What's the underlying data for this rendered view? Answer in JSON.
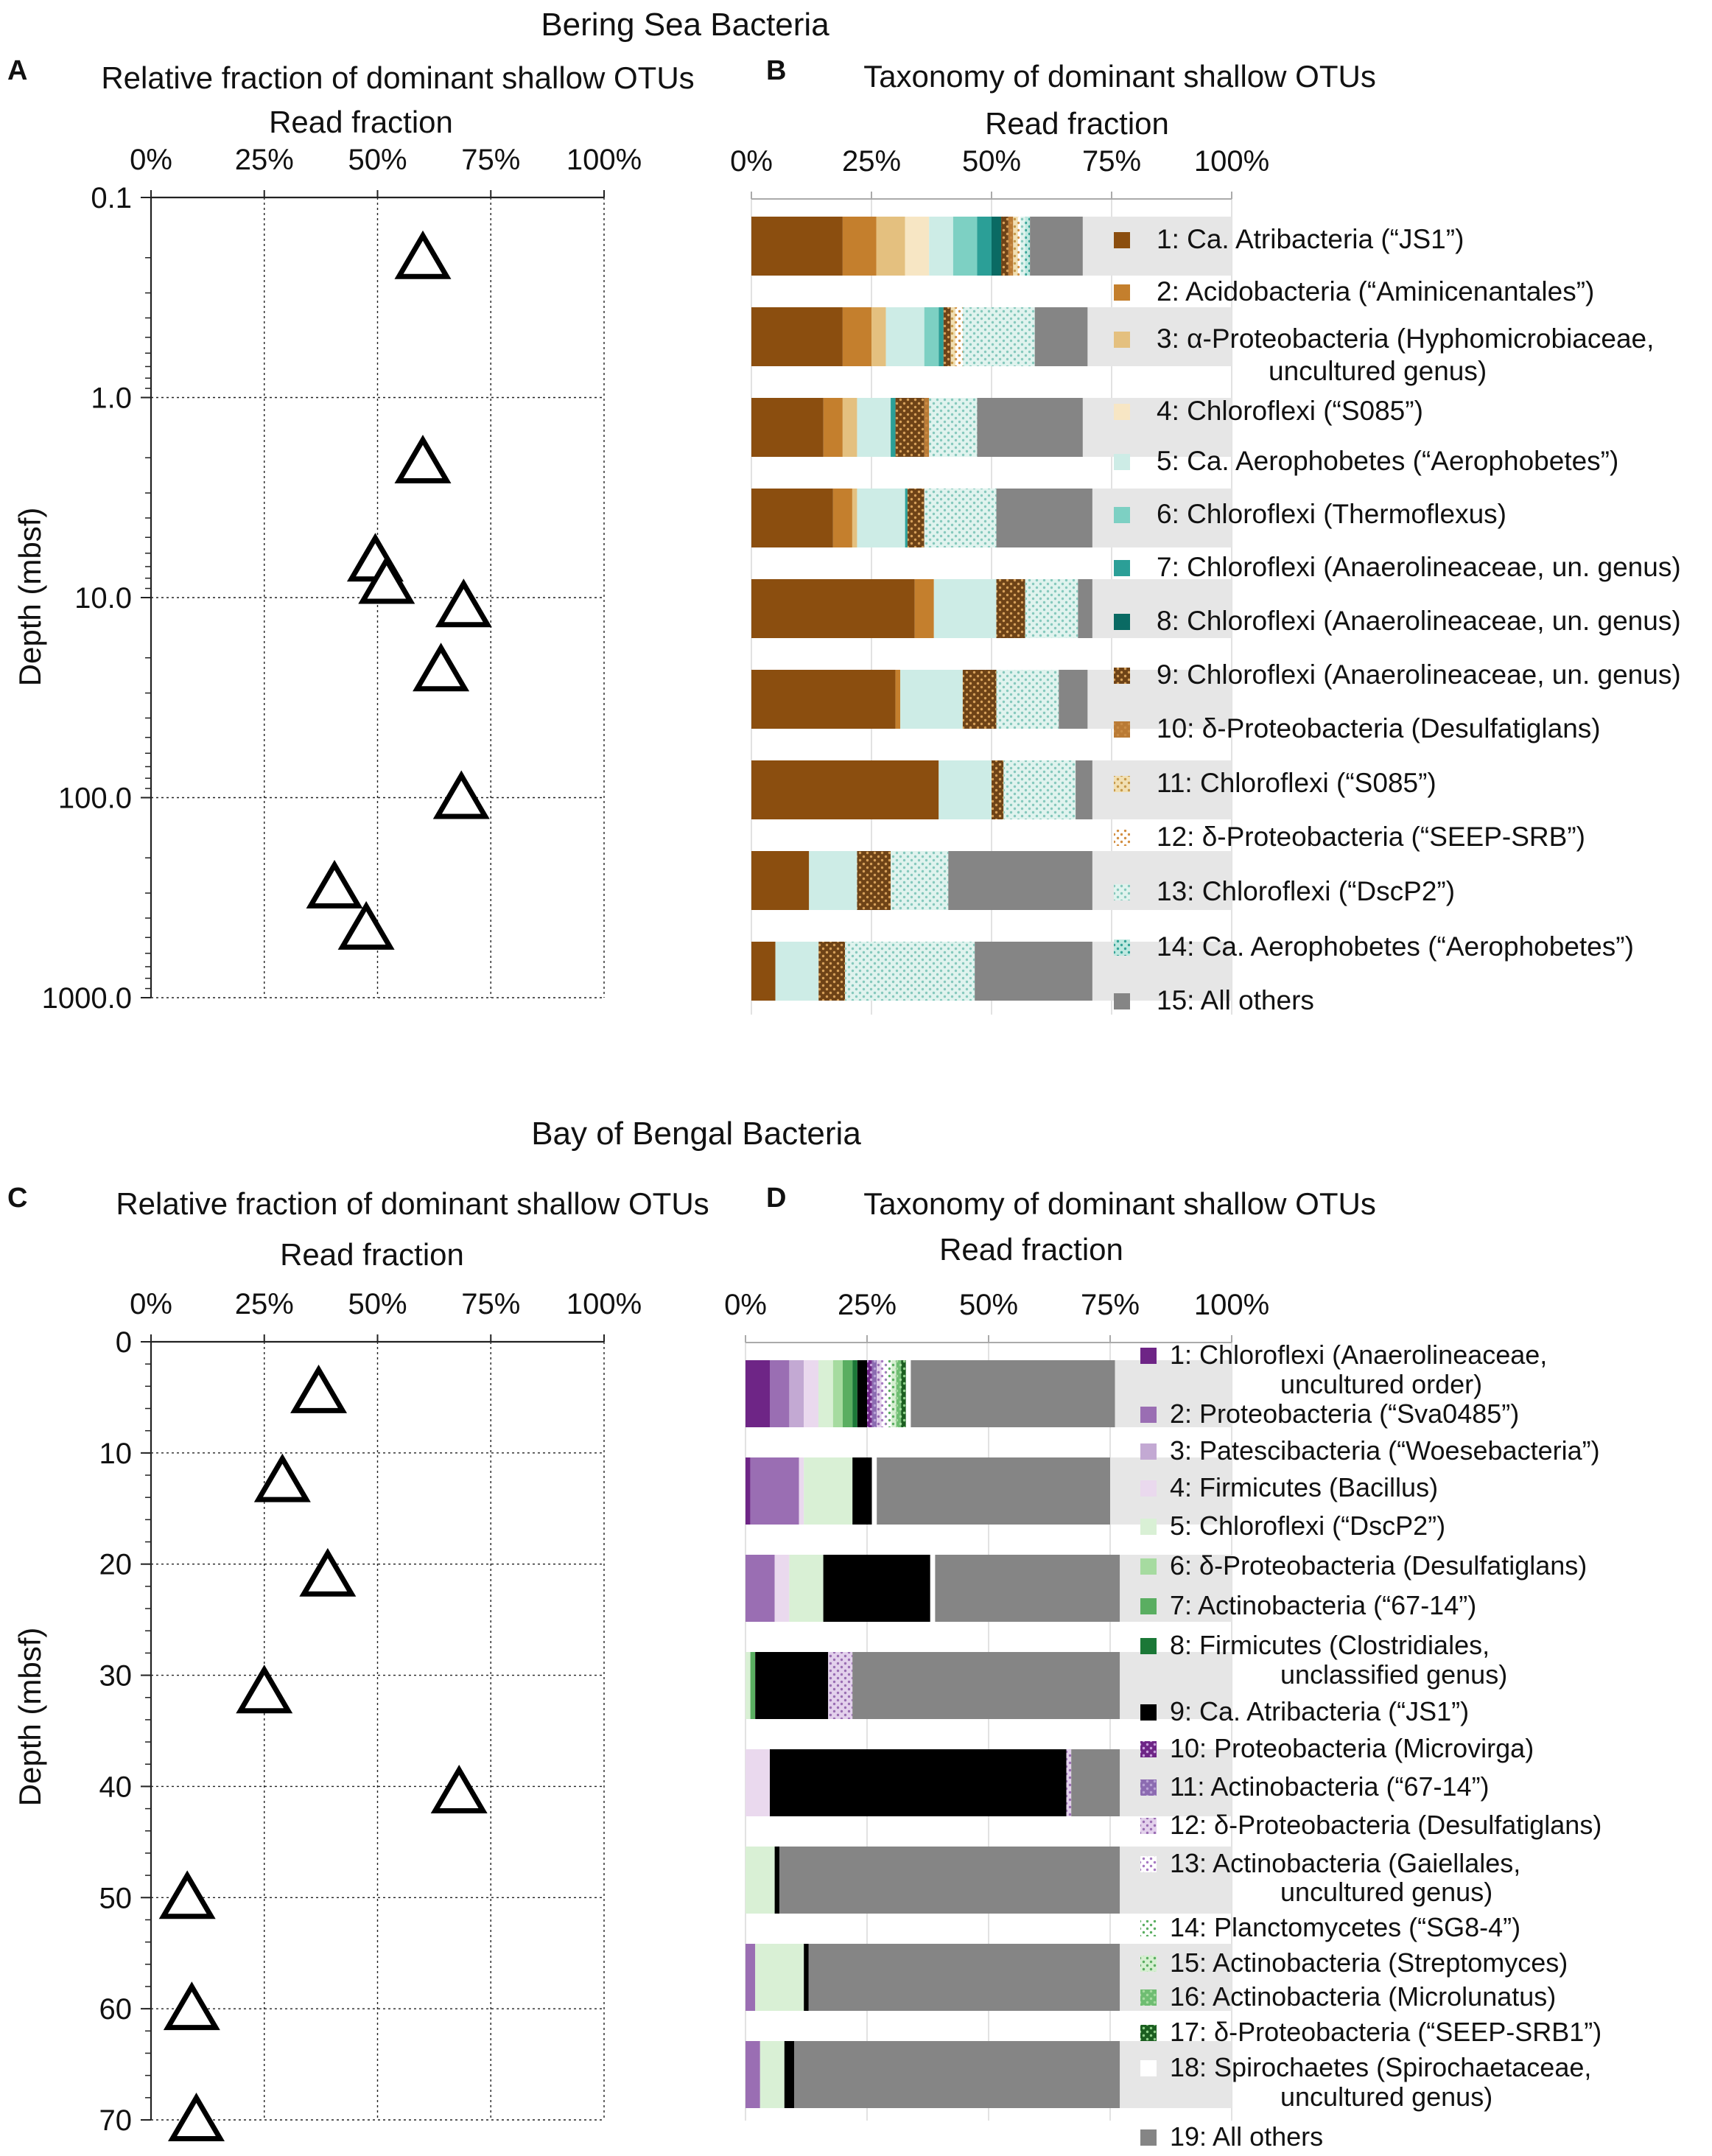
{
  "figure": {
    "section_top_title": "Bering Sea Bacteria",
    "section_bottom_title": "Bay of Bengal Bacteria"
  },
  "colors": {
    "others_bg": "#e6e6e6",
    "palette_bering": [
      "#8b4e0f",
      "#c47f2d",
      "#e4c07f",
      "#f7e6c4",
      "#cdece6",
      "#7dd0c3",
      "#2b9f97",
      "#0a6a63",
      "#6e4317",
      "#b97a35",
      "#d9b36a",
      "#d49a5a",
      "#b9e3dc",
      "#86cfc6",
      "#858585"
    ],
    "palette_bengal": [
      "#6e2586",
      "#9a6eb3",
      "#c3a9d3",
      "#ead9ee",
      "#d9f0d5",
      "#a6dba0",
      "#5aae61",
      "#1b7837",
      "#000000",
      "#7b3294",
      "#8c6bb1",
      "#b294c7",
      "#c7a3d9",
      "#8fc98a",
      "#86c983",
      "#54a85a",
      "#1b5e20",
      "#ffffff",
      "#858585"
    ]
  },
  "chart_data": [
    {
      "id": "A",
      "type": "scatter",
      "panel_letter": "A",
      "title": "Relative fraction of dominant shallow OTUs",
      "xlabel": "Read fraction",
      "ylabel": "Depth (mbsf)",
      "xlim": [
        0,
        100
      ],
      "ylim": [
        0.1,
        1000
      ],
      "yscale": "log",
      "xticks": [
        "0%",
        "25%",
        "50%",
        "75%",
        "100%"
      ],
      "yticks": [
        "0.1",
        "1.0",
        "10.0",
        "100.0",
        "1000.0"
      ],
      "marker": "open-triangle",
      "points": [
        {
          "x": 60,
          "y": 0.2
        },
        {
          "x": 60,
          "y": 2.1
        },
        {
          "x": 49.5,
          "y": 6.5
        },
        {
          "x": 52,
          "y": 8.4
        },
        {
          "x": 69,
          "y": 11
        },
        {
          "x": 64,
          "y": 23
        },
        {
          "x": 68.5,
          "y": 100
        },
        {
          "x": 40.5,
          "y": 280
        },
        {
          "x": 47.5,
          "y": 450
        }
      ]
    },
    {
      "id": "B",
      "type": "bar",
      "orientation": "horizontal-stacked",
      "panel_letter": "B",
      "title": "Taxonomy of dominant shallow OTUs",
      "xlabel": "Read fraction",
      "xlim": [
        0,
        100
      ],
      "xticks": [
        "0%",
        "25%",
        "50%",
        "75%",
        "100%"
      ],
      "legend": [
        "1: Ca. Atribacteria (“JS1”)",
        "2: Acidobacteria (“Aminicenantales”)",
        "3: α-Proteobacteria (Hyphomicrobiaceae, uncultured genus)",
        "4: Chloroflexi (“S085”)",
        "5: Ca. Aerophobetes (“Aerophobetes”)",
        "6:  Chloroflexi (Thermoflexus)",
        "7: Chloroflexi (Anaerolineaceae, un. genus)",
        "8: Chloroflexi (Anaerolineaceae, un. genus)",
        "9: Chloroflexi (Anaerolineaceae, un. genus)",
        "10: δ-Proteobacteria (Desulfatiglans)",
        "11: Chloroflexi (“S085”)",
        "12: δ-Proteobacteria (“SEEP-SRB”)",
        "13: Chloroflexi (“DscP2”)",
        "14: Ca. Aerophobetes (“Aerophobetes”)",
        "15: All others"
      ],
      "rows": [
        [
          19,
          7,
          6,
          5,
          5,
          5,
          3,
          2,
          1.5,
          1,
          1,
          0.5,
          1,
          1,
          11
        ],
        [
          19,
          6,
          3,
          0,
          8,
          3,
          1,
          0,
          1.5,
          0,
          1,
          1.5,
          15,
          0,
          11
        ],
        [
          15,
          4,
          3,
          0,
          7,
          0,
          1,
          0,
          6,
          1,
          0,
          0,
          10,
          0,
          22
        ],
        [
          17,
          4,
          1,
          0,
          10,
          0,
          0.5,
          0,
          3.5,
          0,
          0,
          0,
          15,
          0,
          20
        ],
        [
          34,
          4,
          0,
          0,
          13,
          0,
          0,
          0,
          6,
          0,
          0,
          0,
          11,
          0,
          3
        ],
        [
          30,
          1,
          0,
          0,
          13,
          0,
          0,
          0,
          7,
          0,
          0,
          0,
          13,
          0,
          6
        ],
        [
          39,
          0,
          0,
          0,
          11,
          0,
          0,
          0,
          2.5,
          0,
          0,
          0,
          15,
          0,
          3.5
        ],
        [
          12,
          0,
          0,
          0,
          10,
          0,
          0,
          0,
          7,
          0,
          0,
          0,
          12,
          0,
          30
        ],
        [
          5,
          0,
          0,
          0,
          9,
          0,
          0,
          0,
          5.5,
          0,
          0,
          0,
          27,
          0,
          24.5
        ]
      ]
    },
    {
      "id": "C",
      "type": "scatter",
      "panel_letter": "C",
      "title": "Relative fraction of dominant shallow OTUs",
      "xlabel": "Read fraction",
      "ylabel": "Depth (mbsf)",
      "xlim": [
        0,
        100
      ],
      "ylim": [
        0,
        70
      ],
      "yscale": "linear",
      "xticks": [
        "0%",
        "25%",
        "50%",
        "75%",
        "100%"
      ],
      "yticks": [
        "0",
        "10",
        "20",
        "30",
        "40",
        "50",
        "60",
        "70"
      ],
      "marker": "open-triangle",
      "points": [
        {
          "x": 37,
          "y": 4.5
        },
        {
          "x": 29,
          "y": 12.5
        },
        {
          "x": 39,
          "y": 21
        },
        {
          "x": 25,
          "y": 31.5
        },
        {
          "x": 68,
          "y": 40.5
        },
        {
          "x": 8,
          "y": 50
        },
        {
          "x": 9,
          "y": 60
        },
        {
          "x": 10,
          "y": 70
        }
      ]
    },
    {
      "id": "D",
      "type": "bar",
      "orientation": "horizontal-stacked",
      "panel_letter": "D",
      "title": "Taxonomy of dominant shallow OTUs",
      "xlabel": "Read fraction",
      "xlim": [
        0,
        100
      ],
      "xticks": [
        "0%",
        "25%",
        "50%",
        "75%",
        "100%"
      ],
      "legend": [
        "1: Chloroflexi (Anaerolineaceae, uncultured order)",
        "2: Proteobacteria (“Sva0485”)",
        "3: Patescibacteria (“Woesebacteria”)",
        "4: Firmicutes (Bacillus)",
        "5: Chloroflexi (“DscP2”)",
        "6: δ-Proteobacteria (Desulfatiglans)",
        "7: Actinobacteria (“67-14”)",
        "8: Firmicutes (Clostridiales, unclassified genus)",
        "9: Ca. Atribacteria (“JS1”)",
        "10: Proteobacteria (Microvirga)",
        "11: Actinobacteria (“67-14”)",
        "12: δ-Proteobacteria (Desulfatiglans)",
        "13: Actinobacteria (Gaiellales, uncultured genus)",
        "14: Planctomycetes (“SG8-4”)",
        "15: Actinobacteria (Streptomyces)",
        "16: Actinobacteria (Microlunatus)",
        "17: δ-Proteobacteria (“SEEP-SRB1”)",
        "18: Spirochaetes (Spirochaetaceae, uncultured genus)",
        "19: All others"
      ],
      "rows": [
        [
          5,
          4,
          3,
          3,
          3,
          2,
          2,
          1,
          2,
          1,
          1,
          1,
          1,
          1,
          1,
          1,
          1,
          1,
          42
        ],
        [
          1,
          10,
          0,
          1,
          10,
          0,
          0,
          0,
          4,
          0,
          0,
          0,
          0,
          0,
          0,
          0,
          0,
          1,
          48
        ],
        [
          0,
          6,
          0,
          3,
          7,
          0,
          0,
          0,
          22,
          0,
          0,
          0,
          0,
          0,
          0,
          0,
          0,
          1,
          38
        ],
        [
          0,
          0,
          0,
          0,
          1,
          0,
          1,
          0,
          15,
          0,
          0,
          5,
          0,
          0,
          0,
          0,
          0,
          0,
          55
        ],
        [
          0,
          0,
          0,
          5,
          0,
          0,
          0,
          0,
          61,
          0,
          0,
          1,
          0,
          0,
          0,
          0,
          0,
          0,
          10
        ],
        [
          0,
          0,
          0,
          0,
          6,
          0,
          0,
          0,
          1,
          0,
          0,
          0,
          0,
          0,
          0,
          0,
          0,
          0,
          70
        ],
        [
          0,
          2,
          0,
          0,
          10,
          0,
          0,
          0,
          1,
          0,
          0,
          0,
          0,
          0,
          0,
          0,
          0,
          0,
          64
        ],
        [
          0,
          3,
          0,
          0,
          5,
          0,
          0,
          0,
          2,
          0,
          0,
          0,
          0,
          0,
          0,
          0,
          0,
          0,
          67
        ]
      ]
    }
  ]
}
